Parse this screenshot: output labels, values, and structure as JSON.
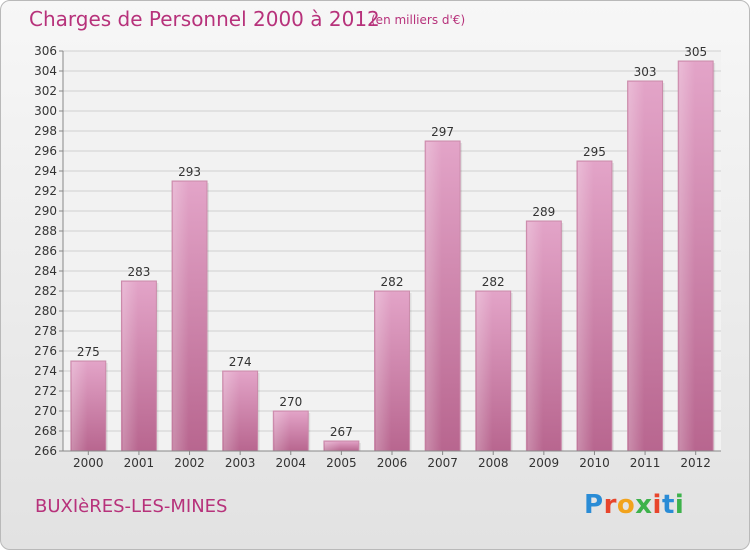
{
  "header": {
    "title": "Charges de Personnel 2000 à 2012",
    "subtitle": "(en milliers d'€)"
  },
  "footer": {
    "commune": "BUXIèRES-LES-MINES",
    "logo_text": "Proxiti",
    "logo_colors": [
      "#2a8cd6",
      "#e8452c",
      "#f2a31c",
      "#3db24b",
      "#e8452c",
      "#2a8cd6",
      "#3db24b"
    ]
  },
  "chart_data": {
    "type": "bar",
    "title": "Charges de Personnel 2000 à 2012",
    "subtitle": "(en milliers d'€)",
    "categories": [
      "2000",
      "2001",
      "2002",
      "2003",
      "2004",
      "2005",
      "2006",
      "2007",
      "2008",
      "2009",
      "2010",
      "2011",
      "2012"
    ],
    "values": [
      275,
      283,
      293,
      274,
      270,
      267,
      282,
      297,
      282,
      289,
      295,
      303,
      305
    ],
    "ylim": [
      266,
      306
    ],
    "yticks": [
      266,
      268,
      270,
      272,
      274,
      276,
      278,
      280,
      282,
      284,
      286,
      288,
      290,
      292,
      294,
      296,
      298,
      300,
      302,
      304,
      306
    ],
    "grid": true,
    "bar_color": "#d588b4",
    "bar_color_dark": "#b8668f"
  }
}
